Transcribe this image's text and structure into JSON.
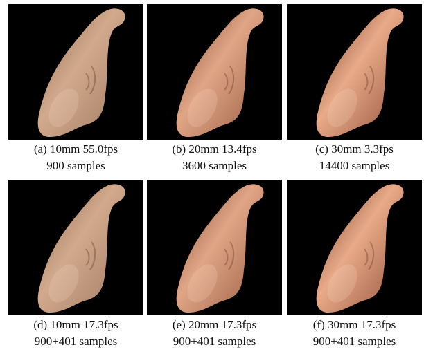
{
  "panels": [
    {
      "caption": "(a) 10mm 55.0fps",
      "samples": "900 samples"
    },
    {
      "caption": "(b) 20mm 13.4fps",
      "samples": "3600 samples"
    },
    {
      "caption": "(c) 30mm 3.3fps",
      "samples": "14400 samples"
    },
    {
      "caption": "(d) 10mm 17.3fps",
      "samples": "900+401 samples"
    },
    {
      "caption": "(e) 20mm 17.3fps",
      "samples": "900+401 samples"
    },
    {
      "caption": "(f) 30mm 17.3fps",
      "samples": "900+401 samples"
    }
  ]
}
